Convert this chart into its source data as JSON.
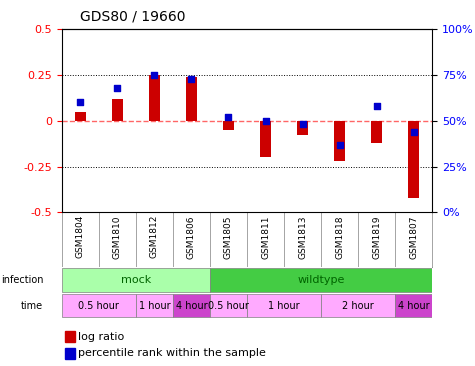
{
  "title": "GDS80 / 19660",
  "samples": [
    "GSM1804",
    "GSM1810",
    "GSM1812",
    "GSM1806",
    "GSM1805",
    "GSM1811",
    "GSM1813",
    "GSM1818",
    "GSM1819",
    "GSM1807"
  ],
  "log_ratio": [
    0.05,
    0.12,
    0.25,
    0.24,
    -0.05,
    -0.2,
    -0.08,
    -0.22,
    -0.12,
    -0.42
  ],
  "percentile": [
    60,
    68,
    75,
    73,
    52,
    50,
    48,
    37,
    58,
    44
  ],
  "ylim": [
    -0.5,
    0.5
  ],
  "yticks_left": [
    -0.5,
    -0.25,
    0,
    0.25,
    0.5
  ],
  "yticks_right": [
    0,
    25,
    50,
    75,
    100
  ],
  "bar_color": "#cc0000",
  "dot_color": "#0000cc",
  "zero_line_color": "#ff6666",
  "grid_color": "black",
  "infection_mock_color": "#aaffaa",
  "infection_wildtype_color": "#44cc44",
  "time_colors": [
    "#ffaaff",
    "#ffaaff",
    "#cc44cc",
    "#ffaaff",
    "#ffaaff",
    "#ffaaff",
    "#cc44cc"
  ],
  "infection_groups": [
    {
      "label": "mock",
      "start": 0,
      "end": 4,
      "color": "#aaffaa"
    },
    {
      "label": "wildtype",
      "start": 4,
      "end": 10,
      "color": "#44cc44"
    }
  ],
  "time_groups": [
    {
      "label": "0.5 hour",
      "start": 0,
      "end": 2,
      "color": "#ffaaff"
    },
    {
      "label": "1 hour",
      "start": 2,
      "end": 3,
      "color": "#ffaaff"
    },
    {
      "label": "4 hour",
      "start": 3,
      "end": 4,
      "color": "#cc44cc"
    },
    {
      "label": "0.5 hour",
      "start": 4,
      "end": 5,
      "color": "#ffaaff"
    },
    {
      "label": "1 hour",
      "start": 5,
      "end": 7,
      "color": "#ffaaff"
    },
    {
      "label": "2 hour",
      "start": 7,
      "end": 9,
      "color": "#ffaaff"
    },
    {
      "label": "4 hour",
      "start": 9,
      "end": 10,
      "color": "#cc44cc"
    }
  ],
  "legend_items": [
    {
      "label": "log ratio",
      "color": "#cc0000"
    },
    {
      "label": "percentile rank within the sample",
      "color": "#0000cc"
    }
  ]
}
